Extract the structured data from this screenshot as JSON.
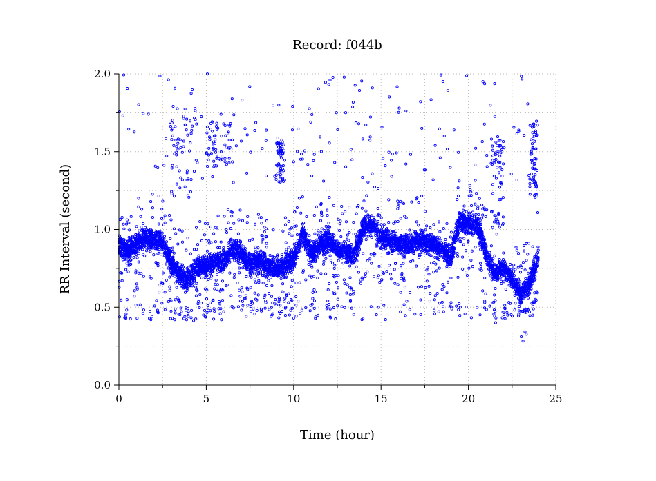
{
  "chart_data": {
    "type": "scatter",
    "title": "Record:  f044b",
    "xlabel": "Time (hour)",
    "ylabel": "RR Interval (second)",
    "xlim": [
      0,
      25
    ],
    "ylim": [
      0,
      2
    ],
    "x_ticks": [
      0,
      5,
      10,
      15,
      20,
      25
    ],
    "x_tick_labels": [
      "0",
      "5",
      "10",
      "15",
      "20",
      "25"
    ],
    "y_ticks": [
      0,
      0.5,
      1.0,
      1.5,
      2.0
    ],
    "y_tick_labels": [
      "0.0",
      "0.5",
      "1.0",
      "1.5",
      "2.0"
    ],
    "grid": true,
    "marker": "open-circle",
    "color": "#0000ff",
    "series": [
      {
        "trend": {
          "x": [
            0,
            0.5,
            1.0,
            1.5,
            2.0,
            2.5,
            3.0,
            3.5,
            4.0,
            4.5,
            5.0,
            5.5,
            6.0,
            6.5,
            7.0,
            7.5,
            8.0,
            8.5,
            9.0,
            9.5,
            10.0,
            10.5,
            11.0,
            11.5,
            12.0,
            12.5,
            13.0,
            13.5,
            14.0,
            14.5,
            15.0,
            15.5,
            16.0,
            16.5,
            17.0,
            17.5,
            18.0,
            18.5,
            19.0,
            19.5,
            20.0,
            20.5,
            21.0,
            21.5,
            22.0,
            22.5,
            23.0,
            23.5,
            24.0
          ],
          "y": [
            0.9,
            0.86,
            0.9,
            0.95,
            0.93,
            0.92,
            0.78,
            0.7,
            0.68,
            0.76,
            0.76,
            0.8,
            0.8,
            0.87,
            0.85,
            0.78,
            0.8,
            0.77,
            0.75,
            0.78,
            0.8,
            0.98,
            0.84,
            0.9,
            0.93,
            0.87,
            0.85,
            0.85,
            1.02,
            1.03,
            0.95,
            0.92,
            0.92,
            0.9,
            0.92,
            0.92,
            0.9,
            0.88,
            0.82,
            1.05,
            1.03,
            1.03,
            0.85,
            0.72,
            0.75,
            0.68,
            0.58,
            0.65,
            0.82
          ]
        },
        "x_range": [
          0,
          24
        ]
      }
    ],
    "outlier_clusters": [
      {
        "x": [
          3.0,
          4.5
        ],
        "y": [
          1.2,
          1.8
        ]
      },
      {
        "x": [
          5.0,
          6.5
        ],
        "y": [
          1.4,
          1.7
        ]
      },
      {
        "x": [
          9.0,
          9.5
        ],
        "y": [
          1.3,
          1.6
        ]
      },
      {
        "x": [
          21.3,
          22.0
        ],
        "y": [
          1.0,
          1.6
        ]
      },
      {
        "x": [
          23.5,
          24.0
        ],
        "y": [
          1.2,
          1.7
        ]
      },
      {
        "x": [
          0,
          24
        ],
        "y": [
          1.3,
          2.0
        ]
      },
      {
        "x": [
          0,
          24
        ],
        "y": [
          0.42,
          0.55
        ]
      }
    ]
  }
}
